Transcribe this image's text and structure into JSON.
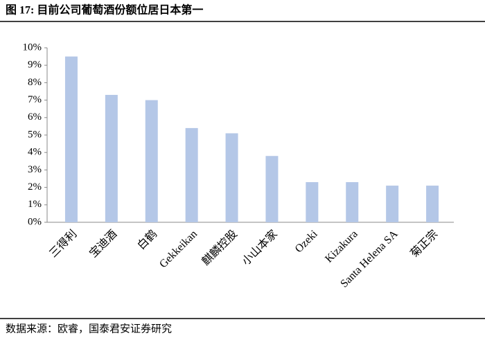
{
  "chart_data": {
    "type": "bar",
    "title": "图 17: 目前公司葡萄酒份额位居日本第一",
    "source": "数据来源：欧睿，国泰君安证券研究",
    "categories": [
      "三得利",
      "宝迪酒",
      "白鹤",
      "Gekkeikan",
      "麒麟控股",
      "小山本家",
      "Ozeki",
      "Kizakura",
      "Santa Helena SA",
      "菊正宗"
    ],
    "values": [
      9.5,
      7.3,
      7.0,
      5.4,
      5.1,
      3.8,
      2.3,
      2.3,
      2.1,
      2.1
    ],
    "color": "#b4c7e7",
    "ylim": [
      0,
      10
    ],
    "yticks": [
      {
        "value": 0,
        "label": "0%"
      },
      {
        "value": 1,
        "label": "1%"
      },
      {
        "value": 2,
        "label": "2%"
      },
      {
        "value": 3,
        "label": "3%"
      },
      {
        "value": 4,
        "label": "4%"
      },
      {
        "value": 5,
        "label": "5%"
      },
      {
        "value": 6,
        "label": "6%"
      },
      {
        "value": 7,
        "label": "7%"
      },
      {
        "value": 8,
        "label": "8%"
      },
      {
        "value": 9,
        "label": "9%"
      },
      {
        "value": 10,
        "label": "10%"
      }
    ],
    "grid": false
  }
}
